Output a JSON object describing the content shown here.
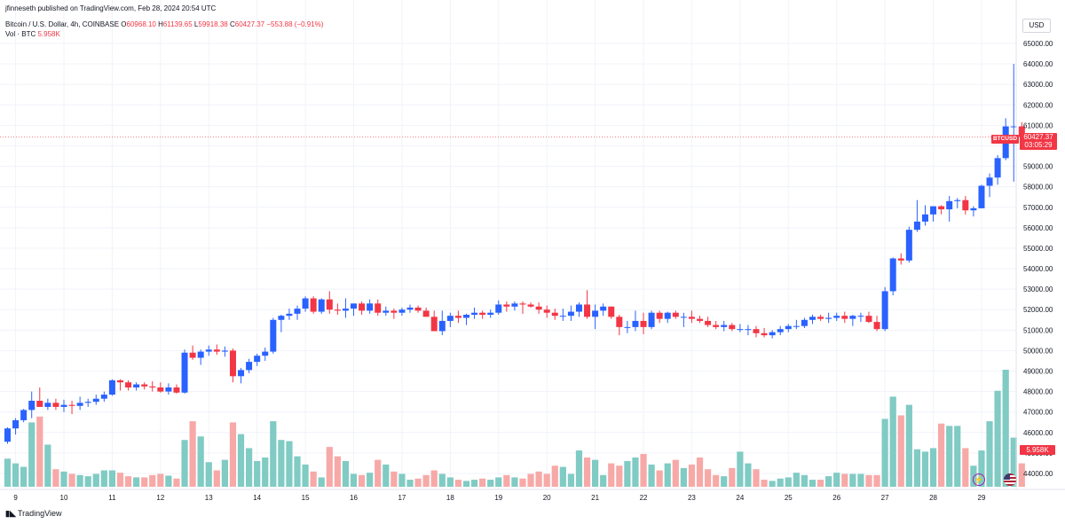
{
  "header": {
    "published": "jfinneseth published on TradingView.com, Feb 28, 2024 20:54 UTC",
    "symbol": "Bitcoin / U.S. Dollar, 4h, COINBASE",
    "o_label": "O",
    "o_value": "60968.10",
    "h_label": "H",
    "h_value": "61139.65",
    "l_label": "L",
    "l_value": "59918.38",
    "c_label": "C",
    "c_value": "60427.37",
    "change": "−553.88 (−0.91%)",
    "vol_label": "Vol · BTC",
    "vol_value": "5.958K"
  },
  "currency_button": "USD",
  "footer_logo": "TradingView",
  "price_tag": {
    "symbol": "BTCUSD",
    "price": "60427.37",
    "countdown": "03:05:29"
  },
  "volume_tag": "5.958K",
  "colors": {
    "up": "#2962ff",
    "down": "#f23645",
    "vol_up": "#80cbc4",
    "vol_down": "#f7a9a7",
    "grid": "#f0f3fa"
  },
  "icons": [
    "flash-icon",
    "us-flag-icon"
  ],
  "chart_data": {
    "type": "candlestick",
    "timeframe": "4h",
    "y_axis_ticks": [
      44000,
      45000,
      46000,
      47000,
      48000,
      49000,
      50000,
      51000,
      52000,
      53000,
      54000,
      55000,
      56000,
      57000,
      58000,
      59000,
      60000,
      61000,
      62000,
      63000,
      64000,
      65000
    ],
    "x_axis_ticks": [
      {
        "label": "9",
        "index": 1
      },
      {
        "label": "10",
        "index": 7
      },
      {
        "label": "11",
        "index": 13
      },
      {
        "label": "12",
        "index": 19
      },
      {
        "label": "13",
        "index": 25
      },
      {
        "label": "14",
        "index": 31
      },
      {
        "label": "15",
        "index": 37
      },
      {
        "label": "16",
        "index": 43
      },
      {
        "label": "17",
        "index": 49
      },
      {
        "label": "18",
        "index": 55
      },
      {
        "label": "19",
        "index": 61
      },
      {
        "label": "20",
        "index": 67
      },
      {
        "label": "21",
        "index": 73
      },
      {
        "label": "22",
        "index": 79
      },
      {
        "label": "23",
        "index": 85
      },
      {
        "label": "24",
        "index": 91
      },
      {
        "label": "25",
        "index": 97
      },
      {
        "label": "26",
        "index": 103
      },
      {
        "label": "27",
        "index": 109
      },
      {
        "label": "28",
        "index": 115
      },
      {
        "label": "29",
        "index": 121
      }
    ],
    "last_price": 60427.37,
    "candles": [
      [
        45550,
        46250,
        45450,
        46200,
        240
      ],
      [
        46200,
        46700,
        45900,
        46600,
        200
      ],
      [
        46600,
        47150,
        46500,
        47100,
        170
      ],
      [
        47100,
        48000,
        46700,
        47550,
        550
      ],
      [
        47550,
        48200,
        47250,
        47250,
        600
      ],
      [
        47250,
        47650,
        47100,
        47450,
        360
      ],
      [
        47450,
        47650,
        47100,
        47250,
        150
      ],
      [
        47250,
        47600,
        47000,
        47350,
        130
      ],
      [
        47350,
        47550,
        46900,
        47300,
        110
      ],
      [
        47300,
        47750,
        47100,
        47450,
        100
      ],
      [
        47450,
        47650,
        47250,
        47500,
        90
      ],
      [
        47500,
        47850,
        47350,
        47650,
        110
      ],
      [
        47650,
        48000,
        47500,
        47850,
        140
      ],
      [
        47850,
        48600,
        47800,
        48550,
        140
      ],
      [
        48550,
        48600,
        48050,
        48450,
        120
      ],
      [
        48450,
        48550,
        48050,
        48200,
        90
      ],
      [
        48200,
        48450,
        48050,
        48350,
        80
      ],
      [
        48350,
        48450,
        48100,
        48250,
        80
      ],
      [
        48250,
        48500,
        48000,
        48200,
        100
      ],
      [
        48200,
        48450,
        47950,
        48000,
        110
      ],
      [
        48000,
        48400,
        47850,
        48200,
        95
      ],
      [
        48200,
        48350,
        47900,
        47950,
        70
      ],
      [
        47950,
        50050,
        47900,
        49900,
        400
      ],
      [
        49900,
        50250,
        49550,
        49650,
        560
      ],
      [
        49650,
        50050,
        49300,
        49950,
        430
      ],
      [
        49950,
        50250,
        49750,
        50050,
        210
      ],
      [
        50050,
        50300,
        49800,
        49950,
        140
      ],
      [
        49950,
        50200,
        49700,
        50000,
        230
      ],
      [
        50000,
        50100,
        48450,
        48750,
        550
      ],
      [
        48750,
        49150,
        48400,
        49050,
        450
      ],
      [
        49050,
        49600,
        48900,
        49450,
        330
      ],
      [
        49450,
        49850,
        49250,
        49750,
        220
      ],
      [
        49750,
        50150,
        49500,
        49950,
        250
      ],
      [
        49950,
        51600,
        49850,
        51500,
        560
      ],
      [
        51500,
        51750,
        50900,
        51700,
        400
      ],
      [
        51700,
        52050,
        51500,
        51800,
        390
      ],
      [
        51800,
        52200,
        51500,
        52050,
        260
      ],
      [
        52050,
        52650,
        51900,
        52550,
        190
      ],
      [
        52550,
        52650,
        51800,
        51900,
        130
      ],
      [
        51900,
        52550,
        51800,
        52500,
        80
      ],
      [
        52500,
        52900,
        51800,
        52000,
        340
      ],
      [
        52000,
        52300,
        51750,
        51950,
        260
      ],
      [
        51950,
        52550,
        51600,
        52050,
        220
      ],
      [
        52050,
        52300,
        51700,
        52300,
        110
      ],
      [
        52300,
        52400,
        51750,
        51950,
        100
      ],
      [
        51950,
        52500,
        51800,
        52300,
        120
      ],
      [
        52300,
        52500,
        51700,
        51850,
        230
      ],
      [
        51850,
        52150,
        51700,
        51950,
        190
      ],
      [
        51950,
        52050,
        51550,
        51850,
        130
      ],
      [
        51850,
        52100,
        51700,
        52000,
        110
      ],
      [
        52000,
        52250,
        51850,
        52100,
        60
      ],
      [
        52100,
        52200,
        51850,
        51950,
        70
      ],
      [
        51950,
        52100,
        51700,
        51650,
        100
      ],
      [
        51650,
        51950,
        50950,
        50950,
        140
      ],
      [
        50950,
        51950,
        50750,
        51450,
        110
      ],
      [
        51450,
        51850,
        51150,
        51700,
        80
      ],
      [
        51700,
        51950,
        51350,
        51600,
        60
      ],
      [
        51600,
        51800,
        51250,
        51750,
        50
      ],
      [
        51750,
        52100,
        51550,
        51850,
        60
      ],
      [
        51850,
        51950,
        51550,
        51750,
        70
      ],
      [
        51750,
        52000,
        51600,
        51850,
        60
      ],
      [
        51850,
        52450,
        51750,
        52250,
        80
      ],
      [
        52250,
        52400,
        51900,
        52150,
        100
      ],
      [
        52150,
        52400,
        51950,
        52300,
        80
      ],
      [
        52300,
        52400,
        51800,
        52250,
        70
      ],
      [
        52250,
        52350,
        52100,
        52150,
        110
      ],
      [
        52150,
        52350,
        51800,
        52000,
        130
      ],
      [
        52000,
        52200,
        51600,
        51850,
        110
      ],
      [
        51850,
        52050,
        51500,
        51700,
        180
      ],
      [
        51700,
        52050,
        51450,
        51700,
        170
      ],
      [
        51700,
        52200,
        51450,
        51900,
        110
      ],
      [
        51900,
        52350,
        51650,
        52250,
        310
      ],
      [
        52250,
        52950,
        51550,
        51650,
        250
      ],
      [
        51650,
        52250,
        51050,
        51950,
        230
      ],
      [
        51950,
        52300,
        51700,
        52150,
        100
      ],
      [
        52150,
        52150,
        51550,
        51650,
        200
      ],
      [
        51650,
        51750,
        50750,
        51150,
        180
      ],
      [
        51150,
        51450,
        50850,
        51150,
        220
      ],
      [
        51150,
        51950,
        50950,
        51450,
        250
      ],
      [
        51450,
        51850,
        50800,
        51150,
        280
      ],
      [
        51150,
        51950,
        51050,
        51850,
        190
      ],
      [
        51850,
        51950,
        51350,
        51550,
        140
      ],
      [
        51550,
        51900,
        51350,
        51850,
        200
      ],
      [
        51850,
        51950,
        51550,
        51650,
        230
      ],
      [
        51650,
        51850,
        51150,
        51650,
        160
      ],
      [
        51650,
        51950,
        51350,
        51550,
        190
      ],
      [
        51550,
        51700,
        51350,
        51450,
        250
      ],
      [
        51450,
        51650,
        51150,
        51250,
        150
      ],
      [
        51250,
        51450,
        51050,
        51150,
        100
      ],
      [
        51150,
        51450,
        50950,
        51250,
        90
      ],
      [
        51250,
        51350,
        50950,
        51050,
        160
      ],
      [
        51050,
        51300,
        50900,
        51050,
        300
      ],
      [
        51050,
        51250,
        50750,
        51050,
        200
      ],
      [
        51050,
        51200,
        50650,
        50850,
        150
      ],
      [
        50850,
        51100,
        50650,
        50750,
        60
      ],
      [
        50750,
        51000,
        50600,
        50900,
        50
      ],
      [
        50900,
        51200,
        50750,
        51050,
        70
      ],
      [
        51050,
        51300,
        50900,
        51200,
        80
      ],
      [
        51200,
        51500,
        51050,
        51200,
        120
      ],
      [
        51200,
        51600,
        51100,
        51500,
        100
      ],
      [
        51500,
        51750,
        51300,
        51650,
        60
      ],
      [
        51650,
        51750,
        51450,
        51550,
        60
      ],
      [
        51550,
        51850,
        51350,
        51600,
        90
      ],
      [
        51600,
        51850,
        51450,
        51700,
        120
      ],
      [
        51700,
        51900,
        51350,
        51550,
        110
      ],
      [
        51550,
        51750,
        51200,
        51700,
        110
      ],
      [
        51700,
        51850,
        51400,
        51700,
        110
      ],
      [
        51700,
        51900,
        51350,
        51400,
        100
      ],
      [
        51400,
        51700,
        50950,
        51050,
        100
      ],
      [
        51050,
        53100,
        50950,
        52900,
        580
      ],
      [
        52900,
        54550,
        52700,
        54500,
        770
      ],
      [
        54500,
        54750,
        54200,
        54400,
        610
      ],
      [
        54400,
        56050,
        54300,
        55900,
        700
      ],
      [
        55900,
        57350,
        55800,
        56300,
        320
      ],
      [
        56300,
        57100,
        56100,
        56650,
        300
      ],
      [
        56650,
        57050,
        56300,
        57050,
        330
      ],
      [
        57050,
        57100,
        56650,
        56900,
        540
      ],
      [
        56900,
        57550,
        56300,
        57300,
        520
      ],
      [
        57300,
        57450,
        56950,
        57350,
        520
      ],
      [
        57350,
        57550,
        56650,
        56850,
        330
      ],
      [
        56850,
        57050,
        56550,
        56950,
        180
      ],
      [
        56950,
        58100,
        56950,
        58050,
        310
      ],
      [
        58050,
        58650,
        57500,
        58450,
        560
      ],
      [
        58450,
        59550,
        58100,
        59400,
        820
      ],
      [
        59400,
        61350,
        59300,
        60950,
        1000
      ],
      [
        60950,
        64000,
        58250,
        60950,
        420
      ],
      [
        60950,
        61150,
        59900,
        60430,
        200
      ]
    ]
  }
}
